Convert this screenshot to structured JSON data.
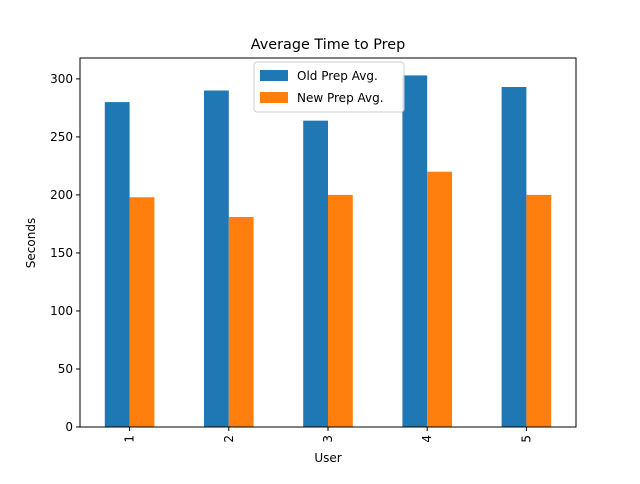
{
  "chart_data": {
    "type": "bar",
    "title": "Average Time to Prep",
    "xlabel": "User",
    "ylabel": "Seconds",
    "categories": [
      "1",
      "2",
      "3",
      "4",
      "5"
    ],
    "series": [
      {
        "name": "Old Prep Avg.",
        "values": [
          280,
          290,
          264,
          303,
          293
        ],
        "color": "#1f77b4"
      },
      {
        "name": "New Prep Avg.",
        "values": [
          198,
          181,
          200,
          220,
          200
        ],
        "color": "#ff7f0e"
      }
    ],
    "ylim": [
      0,
      318
    ],
    "yticks": [
      0,
      50,
      100,
      150,
      200,
      250,
      300
    ],
    "xtick_rotation": 90,
    "grid": false,
    "legend_position": "upper center"
  }
}
